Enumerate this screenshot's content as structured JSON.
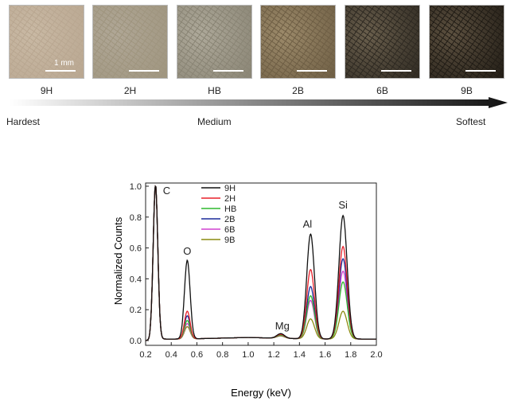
{
  "scale_bar_label": "1 mm",
  "samples": [
    {
      "grade": "9H",
      "color": "#c9b9a4",
      "color2": "#b9a791"
    },
    {
      "grade": "2H",
      "color": "#b0a796",
      "color2": "#9f957f"
    },
    {
      "grade": "HB",
      "color": "#aea99a",
      "color2": "#8a8575"
    },
    {
      "grade": "2B",
      "color": "#9c8a6a",
      "color2": "#6f5f45"
    },
    {
      "grade": "6B",
      "color": "#6a5f4d",
      "color2": "#2f2a22"
    },
    {
      "grade": "9B",
      "color": "#5d5140",
      "color2": "#221d16"
    }
  ],
  "hardness_scale": {
    "hardest": "Hardest",
    "medium": "Medium",
    "softest": "Softest"
  },
  "chart_data": {
    "type": "line",
    "xlabel": "Energy (keV)",
    "ylabel": "Normalized Counts",
    "xlim": [
      0.2,
      2.0
    ],
    "ylim": [
      0.0,
      1.0
    ],
    "xticks": [
      "0.2",
      "0.4",
      "0.6",
      "0.8",
      "1.0",
      "1.2",
      "1.4",
      "1.6",
      "1.8",
      "2.0"
    ],
    "yticks": [
      "0.0",
      "0.2",
      "0.4",
      "0.6",
      "0.8",
      "1.0"
    ],
    "peak_labels": [
      {
        "text": "C",
        "x": 0.277,
        "y": 1.0
      },
      {
        "text": "O",
        "x": 0.525,
        "y": 0.51
      },
      {
        "text": "Mg",
        "x": 1.254,
        "y": 0.03
      },
      {
        "text": "Al",
        "x": 1.487,
        "y": 0.68
      },
      {
        "text": "Si",
        "x": 1.74,
        "y": 0.8
      }
    ],
    "series": [
      {
        "name": "9H",
        "color": "#111111",
        "peaks": {
          "C": 1.0,
          "O": 0.51,
          "Mg": 0.03,
          "Al": 0.68,
          "Si": 0.8
        }
      },
      {
        "name": "2H",
        "color": "#e8202a",
        "peaks": {
          "C": 1.0,
          "O": 0.18,
          "Mg": 0.025,
          "Al": 0.45,
          "Si": 0.6
        }
      },
      {
        "name": "HB",
        "color": "#2eb82e",
        "peaks": {
          "C": 1.0,
          "O": 0.12,
          "Mg": 0.02,
          "Al": 0.28,
          "Si": 0.37
        }
      },
      {
        "name": "2B",
        "color": "#1a2a9a",
        "peaks": {
          "C": 1.0,
          "O": 0.15,
          "Mg": 0.02,
          "Al": 0.34,
          "Si": 0.52
        }
      },
      {
        "name": "6B",
        "color": "#d040d0",
        "peaks": {
          "C": 1.0,
          "O": 0.1,
          "Mg": 0.018,
          "Al": 0.25,
          "Si": 0.44
        }
      },
      {
        "name": "9B",
        "color": "#8c8c10",
        "peaks": {
          "C": 1.0,
          "O": 0.08,
          "Mg": 0.015,
          "Al": 0.13,
          "Si": 0.18
        }
      }
    ]
  }
}
